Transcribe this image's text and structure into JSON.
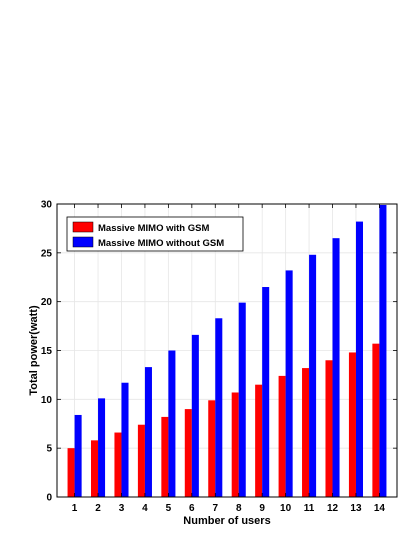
{
  "chart_data": {
    "type": "bar",
    "categories": [
      "1",
      "2",
      "3",
      "4",
      "5",
      "6",
      "7",
      "8",
      "9",
      "10",
      "11",
      "12",
      "13",
      "14"
    ],
    "series": [
      {
        "name": "Massive MIMO with GSM",
        "color": "#ff0000",
        "values": [
          5.0,
          5.8,
          6.6,
          7.4,
          8.2,
          9.0,
          9.9,
          10.7,
          11.5,
          12.4,
          13.2,
          14.0,
          14.8,
          15.7
        ]
      },
      {
        "name": "Massive MIMO without GSM",
        "color": "#0000ff",
        "values": [
          8.4,
          10.1,
          11.7,
          13.3,
          15.0,
          16.6,
          18.3,
          19.9,
          21.5,
          23.2,
          24.8,
          26.5,
          28.2,
          29.9
        ]
      }
    ],
    "xlabel": "Number of users",
    "ylabel": "Total power(watt)",
    "ylim": [
      0,
      30
    ],
    "yticks": [
      0,
      5,
      10,
      15,
      20,
      25,
      30
    ],
    "grid": true,
    "legend_position": "top-left"
  }
}
